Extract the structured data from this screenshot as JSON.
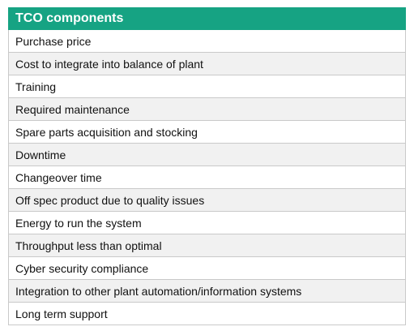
{
  "table": {
    "header": "TCO components",
    "rows": [
      "Purchase price",
      "Cost to integrate into balance of plant",
      "Training",
      "Required maintenance",
      "Spare parts acquisition and stocking",
      "Downtime",
      "Changeover time",
      "Off spec product due to quality issues",
      "Energy to run the system",
      "Throughput less than optimal",
      "Cyber security compliance",
      "Integration to other plant automation/information systems",
      "Long term support"
    ]
  },
  "colors": {
    "header_bg": "#16a383",
    "header_text": "#ffffff",
    "row_alt_bg": "#f1f1f1",
    "border": "#c9c9c9"
  }
}
